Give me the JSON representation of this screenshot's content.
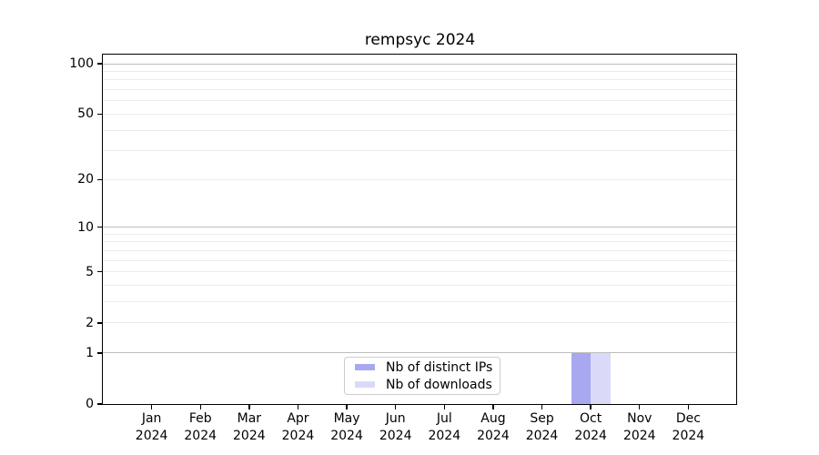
{
  "chart_data": {
    "type": "bar",
    "title": "rempsyc 2024",
    "categories": [
      "Jan",
      "Feb",
      "Mar",
      "Apr",
      "May",
      "Jun",
      "Jul",
      "Aug",
      "Sep",
      "Oct",
      "Nov",
      "Dec"
    ],
    "category_sublabel": "2024",
    "series": [
      {
        "name": "Nb of distinct IPs",
        "color": "#a8a8f0",
        "values": [
          0,
          0,
          0,
          0,
          0,
          0,
          0,
          0,
          0,
          1,
          0,
          0
        ]
      },
      {
        "name": "Nb of downloads",
        "color": "#dadaf8",
        "values": [
          0,
          0,
          0,
          0,
          0,
          0,
          0,
          0,
          0,
          1,
          0,
          0
        ]
      }
    ],
    "yscale": "log1p",
    "ylim": [
      0,
      114
    ],
    "y_tick_labels": [
      100,
      50,
      20,
      10,
      5,
      2,
      1,
      0
    ],
    "y_gridlines_major": [
      1,
      10,
      100
    ],
    "y_gridlines_minor": [
      2,
      3,
      4,
      5,
      6,
      7,
      8,
      9,
      20,
      30,
      40,
      50,
      60,
      70,
      80,
      90
    ],
    "bar_group_width_fraction": 0.8,
    "legend": {
      "position": "lower center"
    },
    "colors": {
      "grid_major": "#bdbdbd",
      "grid_minor": "#ebebeb",
      "axis": "#000000",
      "background": "#ffffff"
    }
  }
}
